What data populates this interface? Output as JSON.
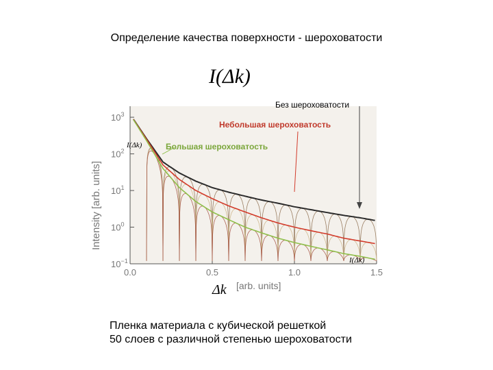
{
  "slide": {
    "title": "Определение качества поверхности - шероховатости",
    "formula": "I(Δk)",
    "caption_line1": "Пленка материала с кубической решеткой",
    "caption_line2": "50 слоев с различной степенью шероховатости"
  },
  "annotations": {
    "no_roughness": "Без шероховатости",
    "small_roughness": "Небольшая шероховатость",
    "large_roughness": "Большая шероховатость"
  },
  "chart_data": {
    "type": "line",
    "xlabel": "Δk",
    "xunits": "[arb. units]",
    "ylabel": "Intensity",
    "yunits": "[arb. units]",
    "xlim": [
      0.0,
      1.5
    ],
    "ylim": [
      0.1,
      2000
    ],
    "yscale": "log",
    "x_ticks": [
      "0.0",
      "0.5",
      "1.0",
      "1.5"
    ],
    "y_ticks": [
      "10-1",
      "10^0",
      "10^1",
      "10^2",
      "10^3"
    ],
    "inline_labels": [
      "I(Δk)",
      "I(Δk)"
    ],
    "colors": {
      "none": "#2b2b2b",
      "small": "#d23a2a",
      "large": "#8fbf4a",
      "thin": "#8a6a4a"
    },
    "series": [
      {
        "name": "Без шероховатости",
        "x": [
          0.0,
          0.1,
          0.2,
          0.3,
          0.4,
          0.5,
          0.6,
          0.7,
          0.8,
          0.9,
          1.0,
          1.1,
          1.2,
          1.3,
          1.4,
          1.5
        ],
        "y": [
          1200,
          260,
          60,
          30,
          18,
          12,
          9,
          7,
          5.5,
          4.5,
          3.6,
          3.0,
          2.5,
          2.1,
          1.8,
          1.5
        ]
      },
      {
        "name": "Небольшая шероховатость",
        "x": [
          0.0,
          0.1,
          0.2,
          0.3,
          0.4,
          0.5,
          0.6,
          0.7,
          0.8,
          0.9,
          1.0,
          1.1,
          1.2,
          1.3,
          1.4,
          1.5
        ],
        "y": [
          1200,
          250,
          50,
          20,
          10,
          6,
          3.8,
          2.6,
          1.8,
          1.3,
          1.0,
          0.8,
          0.65,
          0.5,
          0.42,
          0.35
        ]
      },
      {
        "name": "Большая шероховатость",
        "x": [
          0.0,
          0.1,
          0.2,
          0.3,
          0.4,
          0.5,
          0.6,
          0.7,
          0.8,
          0.9,
          1.0,
          1.1,
          1.2,
          1.3,
          1.4,
          1.5
        ],
        "y": [
          1200,
          230,
          40,
          12,
          5,
          2.6,
          1.6,
          1.0,
          0.7,
          0.5,
          0.38,
          0.3,
          0.24,
          0.19,
          0.16,
          0.13
        ]
      }
    ],
    "oscillations": {
      "period": 0.1,
      "start": 0.1,
      "end": 1.5,
      "min_y": 0.12
    }
  }
}
